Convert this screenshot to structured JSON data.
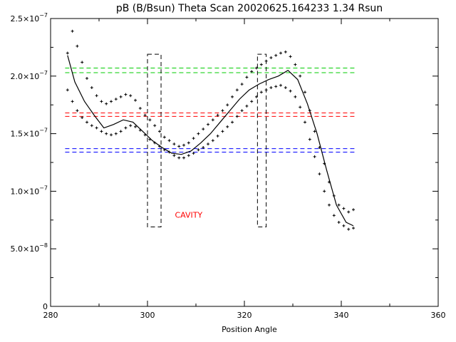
{
  "chart_data": {
    "type": "scatter",
    "title": "pB (B/Bsun) Theta Scan 20020625.164233 1.34 Rsun",
    "xlabel": "Position Angle",
    "ylabel": "",
    "xlim": [
      280,
      360
    ],
    "ylim": [
      0,
      2.5e-07
    ],
    "x_ticks": [
      {
        "value": 280,
        "label": "280"
      },
      {
        "value": 300,
        "label": "300"
      },
      {
        "value": 320,
        "label": "320"
      },
      {
        "value": 340,
        "label": "340"
      },
      {
        "value": 360,
        "label": "360"
      }
    ],
    "y_ticks": [
      {
        "value": 0,
        "mant": "0",
        "exp": ""
      },
      {
        "value": 5e-08,
        "mant": "5.0×10",
        "exp": "−8"
      },
      {
        "value": 1e-07,
        "mant": "1.0×10",
        "exp": "−7"
      },
      {
        "value": 1.5e-07,
        "mant": "1.5×10",
        "exp": "−7"
      },
      {
        "value": 2e-07,
        "mant": "2.0×10",
        "exp": "−7"
      },
      {
        "value": 2.5e-07,
        "mant": "2.5×10",
        "exp": "−7"
      }
    ],
    "grid": false,
    "colors": {
      "green": "#00cc00",
      "red": "#ff0000",
      "blue": "#0000ff",
      "black": "#000000",
      "annotation": "#ff0000"
    },
    "threshold_bands": [
      {
        "color": "green",
        "values": [
          2.07e-07,
          2.03e-07
        ]
      },
      {
        "color": "red",
        "values": [
          1.68e-07,
          1.65e-07
        ]
      },
      {
        "color": "blue",
        "values": [
          1.37e-07,
          1.34e-07
        ]
      }
    ],
    "threshold_x_range": [
      283,
      343
    ],
    "regions": [
      {
        "x": [
          300,
          302.8
        ],
        "y": [
          6.9e-08,
          2.19e-07
        ]
      },
      {
        "x": [
          322.7,
          324.5
        ],
        "y": [
          6.9e-08,
          2.19e-07
        ]
      }
    ],
    "annotation": {
      "text": "CAVITY",
      "x": 308.5,
      "y": 7.7e-08
    },
    "upper_points": {
      "x": [
        283.5,
        284.5,
        285.5,
        286.5,
        287.5,
        288.5,
        289.5,
        290.5,
        291.5,
        292.5,
        293.5,
        294.5,
        295.5,
        296.5,
        297.5,
        298.5,
        299.5,
        300.5,
        301.5,
        302.5,
        303.5,
        304.5,
        305.5,
        306.5,
        307.5,
        308.5,
        309.5,
        310.5,
        311.5,
        312.5,
        313.5,
        314.5,
        315.5,
        316.5,
        317.5,
        318.5,
        319.5,
        320.5,
        321.5,
        322.5,
        323.5,
        324.5,
        325.5,
        326.5,
        327.5,
        328.5,
        329.5,
        330.5,
        331.5,
        332.5,
        333.5,
        334.5,
        335.5,
        336.5,
        337.5,
        338.5,
        339.5,
        340.5,
        341.5,
        342.5
      ],
      "y": [
        2.2e-07,
        2.39e-07,
        2.26e-07,
        2.12e-07,
        1.98e-07,
        1.9e-07,
        1.83e-07,
        1.78e-07,
        1.76e-07,
        1.78e-07,
        1.8e-07,
        1.82e-07,
        1.84e-07,
        1.83e-07,
        1.79e-07,
        1.72e-07,
        1.66e-07,
        1.62e-07,
        1.57e-07,
        1.52e-07,
        1.47e-07,
        1.44e-07,
        1.41e-07,
        1.39e-07,
        1.4e-07,
        1.42e-07,
        1.46e-07,
        1.5e-07,
        1.54e-07,
        1.58e-07,
        1.62e-07,
        1.66e-07,
        1.7e-07,
        1.75e-07,
        1.82e-07,
        1.88e-07,
        1.93e-07,
        1.99e-07,
        2.04e-07,
        2.07e-07,
        2.1e-07,
        2.13e-07,
        2.16e-07,
        2.18e-07,
        2.2e-07,
        2.21e-07,
        2.17e-07,
        2.1e-07,
        2e-07,
        1.86e-07,
        1.7e-07,
        1.52e-07,
        1.38e-07,
        1.24e-07,
        1.08e-07,
        9.6e-08,
        8.8e-08,
        8.5e-08,
        8.2e-08,
        8.4e-08
      ]
    },
    "lower_points": {
      "x": [
        283.5,
        284.5,
        285.5,
        286.5,
        287.5,
        288.5,
        289.5,
        290.5,
        291.5,
        292.5,
        293.5,
        294.5,
        295.5,
        296.5,
        297.5,
        298.5,
        299.5,
        300.5,
        301.5,
        302.5,
        303.5,
        304.5,
        305.5,
        306.5,
        307.5,
        308.5,
        309.5,
        310.5,
        311.5,
        312.5,
        313.5,
        314.5,
        315.5,
        316.5,
        317.5,
        318.5,
        319.5,
        320.5,
        321.5,
        322.5,
        323.5,
        324.5,
        325.5,
        326.5,
        327.5,
        328.5,
        329.5,
        330.5,
        331.5,
        332.5,
        333.5,
        334.5,
        335.5,
        336.5,
        337.5,
        338.5,
        339.5,
        340.5,
        341.5,
        342.5
      ],
      "y": [
        1.88e-07,
        1.78e-07,
        1.7e-07,
        1.64e-07,
        1.6e-07,
        1.57e-07,
        1.55e-07,
        1.52e-07,
        1.5e-07,
        1.49e-07,
        1.5e-07,
        1.52e-07,
        1.55e-07,
        1.57e-07,
        1.56e-07,
        1.53e-07,
        1.49e-07,
        1.45e-07,
        1.42e-07,
        1.39e-07,
        1.36e-07,
        1.34e-07,
        1.31e-07,
        1.29e-07,
        1.29e-07,
        1.31e-07,
        1.33e-07,
        1.36e-07,
        1.38e-07,
        1.41e-07,
        1.44e-07,
        1.48e-07,
        1.52e-07,
        1.56e-07,
        1.6e-07,
        1.65e-07,
        1.7e-07,
        1.74e-07,
        1.78e-07,
        1.82e-07,
        1.86e-07,
        1.88e-07,
        1.9e-07,
        1.91e-07,
        1.92e-07,
        1.9e-07,
        1.87e-07,
        1.82e-07,
        1.73e-07,
        1.6e-07,
        1.45e-07,
        1.3e-07,
        1.15e-07,
        1e-07,
        8.8e-08,
        7.9e-08,
        7.3e-08,
        7e-08,
        6.7e-08,
        6.8e-08
      ]
    },
    "fit_line": {
      "x": [
        283.5,
        285,
        287,
        289,
        291,
        293,
        295,
        297,
        299,
        301,
        303,
        305,
        307,
        309,
        311,
        313,
        315,
        317,
        319,
        321,
        323,
        325,
        327,
        329,
        331,
        333,
        335,
        337,
        339,
        341,
        342.5
      ],
      "y": [
        2.18e-07,
        1.95e-07,
        1.78e-07,
        1.66e-07,
        1.55e-07,
        1.58e-07,
        1.62e-07,
        1.6e-07,
        1.52e-07,
        1.44e-07,
        1.38e-07,
        1.33e-07,
        1.32e-07,
        1.35e-07,
        1.42e-07,
        1.5e-07,
        1.6e-07,
        1.7e-07,
        1.8e-07,
        1.88e-07,
        1.93e-07,
        1.97e-07,
        2e-07,
        2.05e-07,
        1.97e-07,
        1.76e-07,
        1.5e-07,
        1.18e-07,
        8.8e-08,
        7.3e-08,
        7e-08
      ]
    }
  }
}
